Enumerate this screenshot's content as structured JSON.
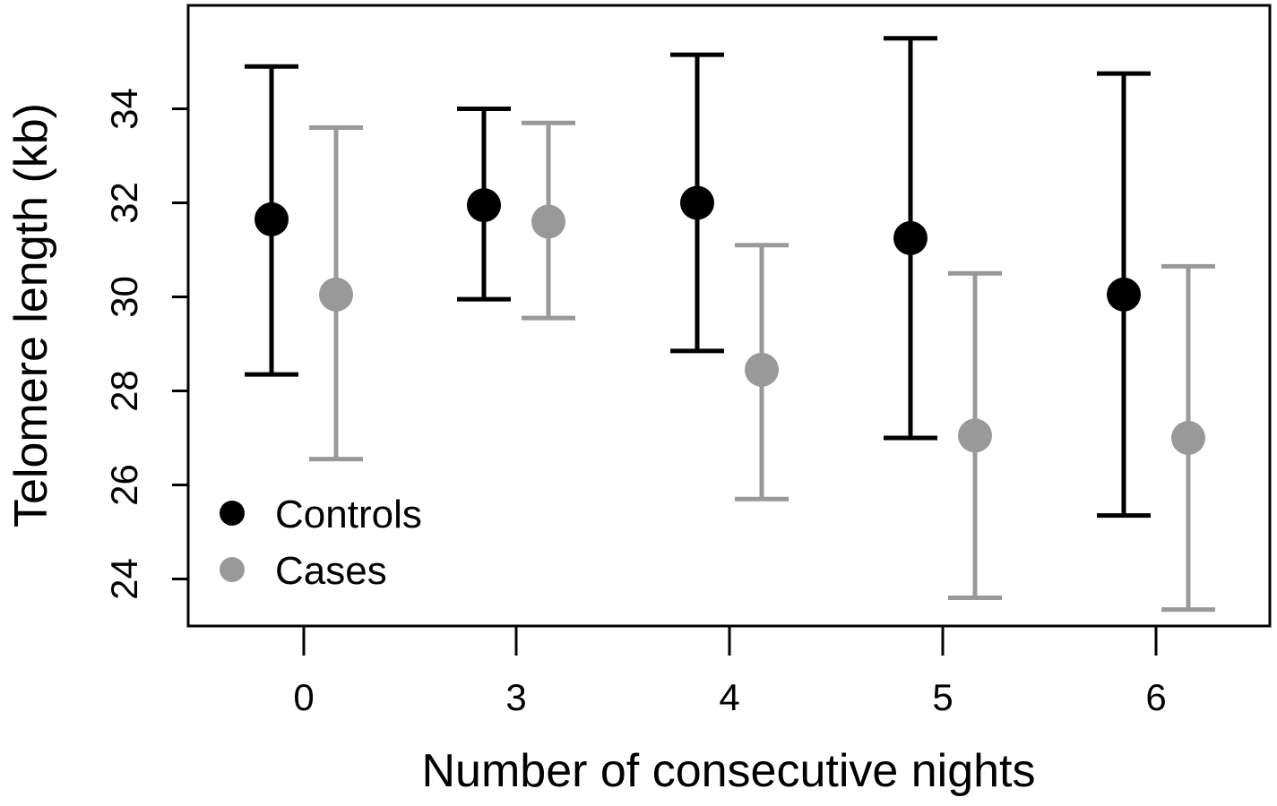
{
  "chart_data": {
    "type": "scatter",
    "xlabel": "Number of consecutive nights",
    "ylabel": "Telomere length (kb)",
    "categories": [
      "0",
      "3",
      "4",
      "5",
      "6"
    ],
    "ylim": [
      23.0,
      36.2
    ],
    "yticks": [
      24,
      26,
      28,
      30,
      32,
      34
    ],
    "grid": false,
    "legend_placement": "bottom-left",
    "series": [
      {
        "name": "Controls",
        "color": "#000000",
        "values": [
          31.65,
          31.95,
          32.0,
          31.25,
          30.05
        ],
        "lower": [
          28.35,
          29.95,
          28.85,
          27.0,
          25.35
        ],
        "upper": [
          34.9,
          34.0,
          35.15,
          35.5,
          34.75
        ]
      },
      {
        "name": "Cases",
        "color": "#999999",
        "values": [
          30.05,
          31.6,
          28.45,
          27.05,
          27.0
        ],
        "lower": [
          26.55,
          29.55,
          25.7,
          23.6,
          23.35
        ],
        "upper": [
          33.6,
          33.7,
          31.1,
          30.5,
          30.65
        ]
      }
    ]
  }
}
